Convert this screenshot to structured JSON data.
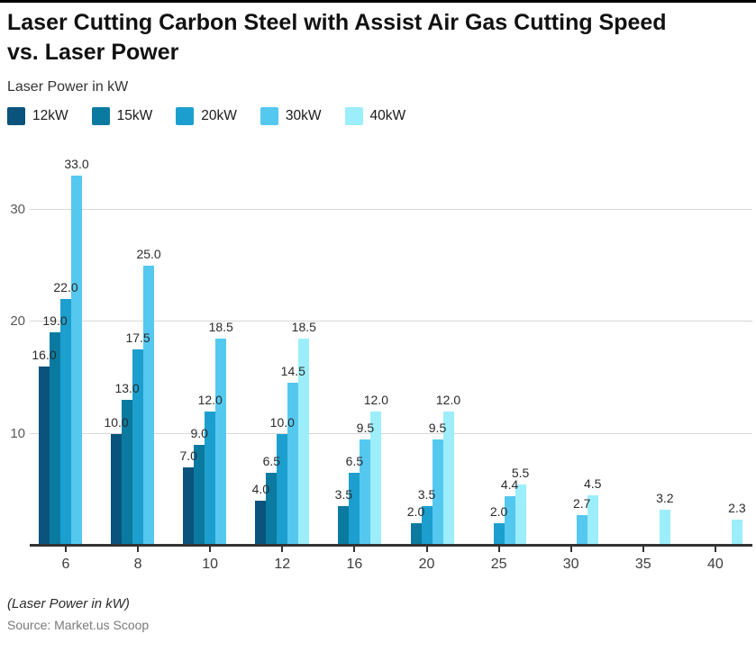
{
  "page": {
    "title": "Laser Cutting Carbon Steel with Assist Air Gas Cutting Speed vs. Laser Power",
    "subtitle": "Laser Power in kW",
    "footnote": "(Laser Power in kW)",
    "source": "Source: Market.us Scoop"
  },
  "chart_data": {
    "type": "bar",
    "title": "Laser Cutting Carbon Steel with Assist Air Gas Cutting Speed vs. Laser Power",
    "subtitle": "Laser Power in kW",
    "xlabel": "(Laser Power in kW)",
    "ylabel": "",
    "categories": [
      "6",
      "8",
      "10",
      "12",
      "16",
      "20",
      "25",
      "30",
      "35",
      "40"
    ],
    "yticks": [
      10,
      20,
      30
    ],
    "ylim": [
      0,
      36
    ],
    "grid": true,
    "legend_position": "top",
    "value_labels": "one-decimal",
    "series": [
      {
        "name": "12kW",
        "color": "#0a537c",
        "values": [
          16,
          10,
          7,
          4,
          null,
          null,
          null,
          null,
          null,
          null
        ]
      },
      {
        "name": "15kW",
        "color": "#0b7aa0",
        "values": [
          19,
          13,
          9,
          6.5,
          3.5,
          2,
          null,
          null,
          null,
          null
        ]
      },
      {
        "name": "20kW",
        "color": "#1c9fce",
        "values": [
          22,
          17.5,
          12,
          10,
          6.5,
          3.5,
          2,
          null,
          null,
          null
        ]
      },
      {
        "name": "30kW",
        "color": "#55c8f0",
        "values": [
          33,
          25,
          18.5,
          14.5,
          9.5,
          9.5,
          4.4,
          2.7,
          null,
          null
        ]
      },
      {
        "name": "40kW",
        "color": "#9ceefb",
        "values": [
          null,
          null,
          null,
          18.5,
          12,
          12,
          5.5,
          4.5,
          3.2,
          2.3
        ]
      }
    ],
    "source": "Source: Market.us Scoop"
  }
}
